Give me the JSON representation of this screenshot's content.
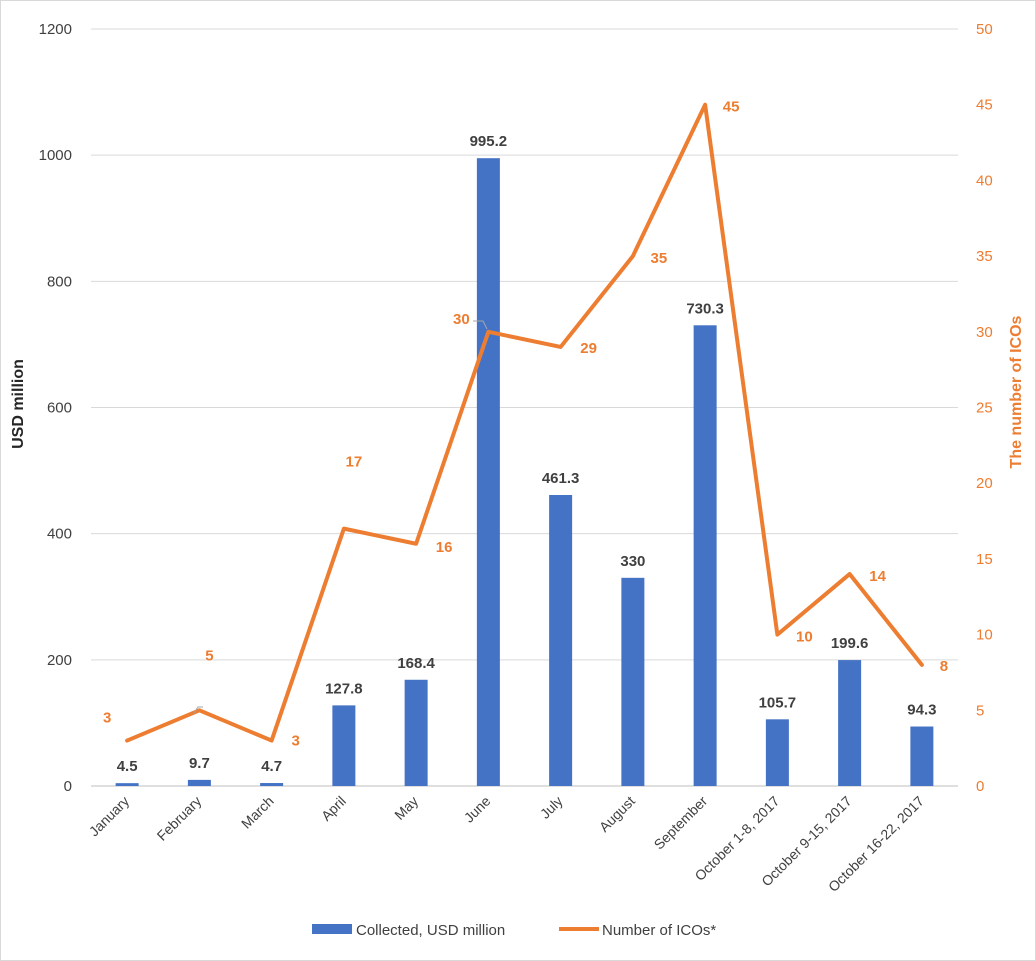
{
  "chart_data": {
    "type": "bar",
    "categories": [
      "January",
      "February",
      "March",
      "April",
      "May",
      "June",
      "July",
      "August",
      "September",
      "October 1-8, 2017",
      "October 9-15, 2017",
      "October 16-22, 2017"
    ],
    "series": [
      {
        "name": "Collected, USD million",
        "type": "bar",
        "axis": "left",
        "color": "#4472c4",
        "values": [
          4.5,
          9.7,
          4.7,
          127.8,
          168.4,
          995.2,
          461.3,
          330,
          730.3,
          105.7,
          199.6,
          94.3
        ],
        "labels": [
          "4.5",
          "9.7",
          "4.7",
          "127.8",
          "168.4",
          "995.2",
          "461.3",
          "330",
          "730.3",
          "105.7",
          "199.6",
          "94.3"
        ]
      },
      {
        "name": "Number of ICOs*",
        "type": "line",
        "axis": "right",
        "color": "#ed7d31",
        "values": [
          3,
          5,
          3,
          17,
          16,
          30,
          29,
          35,
          45,
          10,
          14,
          8
        ],
        "labels": [
          "3",
          "5",
          "3",
          "17",
          "16",
          "30",
          "29",
          "35",
          "45",
          "10",
          "14",
          "8"
        ]
      }
    ],
    "ylabel": "USD million",
    "y2label": "The number of ICOs",
    "ylim": [
      0,
      1200
    ],
    "y2lim": [
      0,
      50
    ],
    "yticks": [
      "0",
      "200",
      "400",
      "600",
      "800",
      "1000",
      "1200"
    ],
    "y2ticks": [
      "0",
      "5",
      "10",
      "15",
      "20",
      "25",
      "30",
      "35",
      "40",
      "45",
      "50"
    ],
    "grid": true,
    "legend_position": "bottom"
  }
}
